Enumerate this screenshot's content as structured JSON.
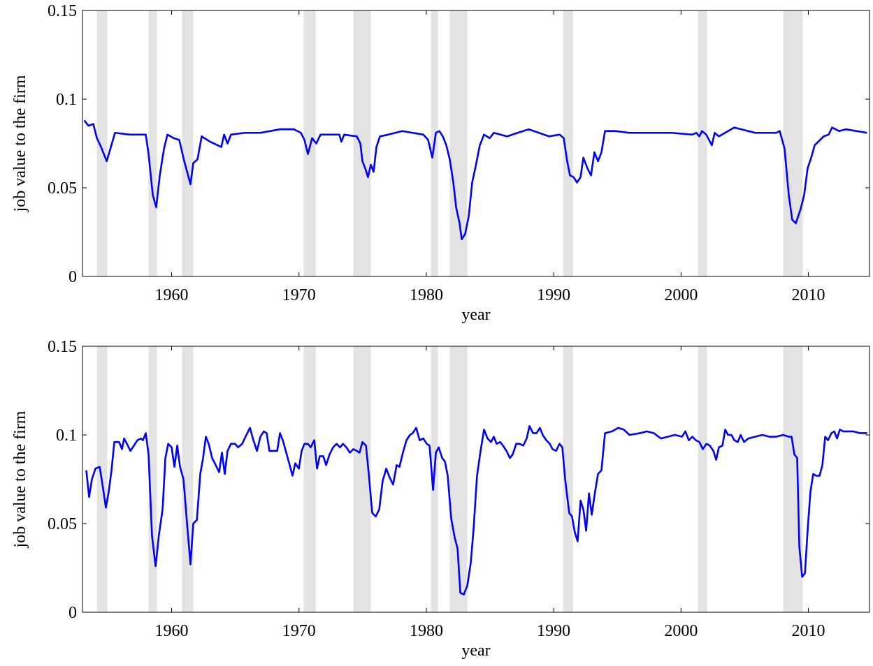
{
  "chart_data": [
    {
      "type": "line",
      "xlabel": "year",
      "ylabel": "job value to the firm",
      "xlim": [
        1953,
        2014.8
      ],
      "ylim": [
        0,
        0.15
      ],
      "xticks": [
        1960,
        1970,
        1980,
        1990,
        2000,
        2010
      ],
      "yticks": [
        0,
        0.05,
        0.1,
        0.15
      ],
      "shaded_spans": [
        [
          1954.13,
          1954.95
        ],
        [
          1958.19,
          1958.85
        ],
        [
          1960.82,
          1961.7
        ],
        [
          1970.37,
          1971.31
        ],
        [
          1974.27,
          1975.64
        ],
        [
          1980.36,
          1980.91
        ],
        [
          1981.84,
          1983.22
        ],
        [
          1990.74,
          1991.51
        ],
        [
          2001.33,
          2002.04
        ],
        [
          2008.02,
          2009.56
        ]
      ],
      "shade_color": "#e3e3e3",
      "x": [
        1953.14,
        1953.47,
        1953.85,
        1954.13,
        1954.46,
        1954.9,
        1955.23,
        1955.55,
        1956.71,
        1957.97,
        1958.19,
        1958.52,
        1958.79,
        1959.07,
        1959.4,
        1959.67,
        1960.16,
        1960.6,
        1960.99,
        1961.48,
        1961.7,
        1962.03,
        1962.36,
        1963.02,
        1963.9,
        1964.12,
        1964.39,
        1964.66,
        1965.76,
        1966.97,
        1968.51,
        1969.6,
        1970.15,
        1970.43,
        1970.7,
        1971.03,
        1971.36,
        1971.69,
        1972.35,
        1973.17,
        1973.33,
        1973.55,
        1974.54,
        1974.82,
        1974.98,
        1975.2,
        1975.42,
        1975.64,
        1975.86,
        1976.08,
        1976.36,
        1977.01,
        1978.11,
        1979.76,
        1980.14,
        1980.47,
        1980.75,
        1981.02,
        1981.29,
        1981.57,
        1981.84,
        1982.12,
        1982.34,
        1982.61,
        1982.78,
        1983.05,
        1983.33,
        1983.6,
        1983.87,
        1984.2,
        1984.53,
        1984.97,
        1985.3,
        1986.34,
        1987.17,
        1988.04,
        1989.64,
        1990.46,
        1990.79,
        1991.06,
        1991.28,
        1991.56,
        1991.83,
        1992.11,
        1992.33,
        1992.65,
        1992.93,
        1993.2,
        1993.48,
        1993.75,
        1994.03,
        1994.85,
        1995.95,
        1997.59,
        1999.24,
        2000.88,
        2001.21,
        2001.43,
        2001.65,
        2001.98,
        2002.42,
        2002.64,
        2002.97,
        2004.18,
        2005.82,
        2007.47,
        2007.75,
        2008.13,
        2008.46,
        2008.73,
        2009.01,
        2009.39,
        2009.67,
        2009.94,
        2010.22,
        2010.49,
        2011.2,
        2011.59,
        2011.86,
        2012.41,
        2012.96,
        2014.6
      ],
      "series": [
        {
          "color": "#0000ff",
          "values": [
            0.088,
            0.085,
            0.086,
            0.078,
            0.073,
            0.065,
            0.073,
            0.081,
            0.08,
            0.08,
            0.069,
            0.046,
            0.039,
            0.057,
            0.072,
            0.08,
            0.078,
            0.077,
            0.065,
            0.052,
            0.064,
            0.066,
            0.079,
            0.076,
            0.073,
            0.08,
            0.075,
            0.08,
            0.081,
            0.081,
            0.083,
            0.083,
            0.081,
            0.077,
            0.069,
            0.078,
            0.075,
            0.08,
            0.08,
            0.08,
            0.076,
            0.08,
            0.079,
            0.075,
            0.065,
            0.061,
            0.056,
            0.063,
            0.059,
            0.073,
            0.079,
            0.08,
            0.082,
            0.08,
            0.077,
            0.067,
            0.081,
            0.082,
            0.079,
            0.074,
            0.066,
            0.053,
            0.039,
            0.03,
            0.021,
            0.024,
            0.034,
            0.053,
            0.062,
            0.074,
            0.08,
            0.078,
            0.081,
            0.079,
            0.081,
            0.083,
            0.079,
            0.08,
            0.078,
            0.065,
            0.057,
            0.056,
            0.053,
            0.056,
            0.067,
            0.061,
            0.057,
            0.07,
            0.065,
            0.07,
            0.082,
            0.082,
            0.081,
            0.081,
            0.081,
            0.08,
            0.081,
            0.079,
            0.082,
            0.08,
            0.074,
            0.081,
            0.079,
            0.084,
            0.081,
            0.081,
            0.082,
            0.072,
            0.046,
            0.032,
            0.03,
            0.038,
            0.046,
            0.061,
            0.067,
            0.074,
            0.079,
            0.08,
            0.084,
            0.082,
            0.083,
            0.081
          ]
        }
      ]
    },
    {
      "type": "line",
      "xlabel": "year",
      "ylabel": "job value to the firm",
      "xlim": [
        1953,
        2014.8
      ],
      "ylim": [
        0,
        0.15
      ],
      "xticks": [
        1960,
        1970,
        1980,
        1990,
        2000,
        2010
      ],
      "yticks": [
        0,
        0.05,
        0.1,
        0.15
      ],
      "shaded_spans": [
        [
          1954.13,
          1954.95
        ],
        [
          1958.19,
          1958.85
        ],
        [
          1960.82,
          1961.7
        ],
        [
          1970.37,
          1971.31
        ],
        [
          1974.27,
          1975.64
        ],
        [
          1980.36,
          1980.91
        ],
        [
          1981.84,
          1983.22
        ],
        [
          1990.74,
          1991.51
        ],
        [
          2001.33,
          2002.04
        ],
        [
          2008.02,
          2009.56
        ]
      ],
      "shade_color": "#e3e3e3",
      "x": [
        1953.3,
        1953.52,
        1953.74,
        1954.02,
        1954.35,
        1954.57,
        1954.84,
        1955.06,
        1955.28,
        1955.5,
        1955.88,
        1956.1,
        1956.27,
        1956.49,
        1956.76,
        1957.04,
        1957.31,
        1957.59,
        1957.75,
        1957.97,
        1958.19,
        1958.46,
        1958.74,
        1959.01,
        1959.29,
        1959.51,
        1959.73,
        1960.0,
        1960.22,
        1960.44,
        1960.66,
        1960.93,
        1961.21,
        1961.48,
        1961.7,
        1961.98,
        1962.25,
        1962.47,
        1962.69,
        1962.91,
        1963.18,
        1963.46,
        1963.73,
        1963.95,
        1964.17,
        1964.39,
        1964.66,
        1964.99,
        1965.21,
        1965.54,
        1965.87,
        1966.15,
        1966.42,
        1966.7,
        1966.97,
        1967.24,
        1967.46,
        1967.68,
        1968.01,
        1968.29,
        1968.51,
        1968.73,
        1969.0,
        1969.27,
        1969.49,
        1969.71,
        1969.99,
        1970.21,
        1970.43,
        1970.7,
        1970.92,
        1971.2,
        1971.42,
        1971.63,
        1971.91,
        1972.13,
        1972.4,
        1972.68,
        1972.95,
        1973.23,
        1973.45,
        1973.72,
        1974.0,
        1974.27,
        1974.54,
        1974.76,
        1974.98,
        1975.26,
        1975.48,
        1975.75,
        1976.03,
        1976.3,
        1976.57,
        1976.85,
        1977.12,
        1977.39,
        1977.67,
        1977.89,
        1978.16,
        1978.44,
        1978.71,
        1978.93,
        1979.2,
        1979.48,
        1979.76,
        1980.03,
        1980.25,
        1980.53,
        1980.75,
        1980.97,
        1981.24,
        1981.46,
        1981.68,
        1981.95,
        1982.23,
        1982.45,
        1982.67,
        1982.94,
        1983.22,
        1983.49,
        1983.71,
        1983.98,
        1984.26,
        1984.53,
        1984.81,
        1985.08,
        1985.3,
        1985.52,
        1985.8,
        1986.02,
        1986.29,
        1986.56,
        1986.78,
        1987.06,
        1987.33,
        1987.61,
        1987.88,
        1988.1,
        1988.38,
        1988.65,
        1988.92,
        1989.14,
        1989.42,
        1989.69,
        1989.91,
        1990.19,
        1990.46,
        1990.68,
        1990.9,
        1991.22,
        1991.44,
        1991.66,
        1991.88,
        1992.11,
        1992.33,
        1992.55,
        1992.77,
        1992.99,
        1993.21,
        1993.48,
        1993.75,
        1994.03,
        1994.58,
        1995.07,
        1995.51,
        1995.95,
        1996.77,
        1997.32,
        1997.87,
        1998.42,
        1998.97,
        1999.52,
        2000.07,
        2000.34,
        2000.61,
        2000.89,
        2001.16,
        2001.44,
        2001.71,
        2001.99,
        2002.26,
        2002.54,
        2002.76,
        2002.97,
        2003.25,
        2003.47,
        2003.69,
        2003.96,
        2004.18,
        2004.46,
        2004.68,
        2004.95,
        2005.28,
        2005.83,
        2006.38,
        2006.93,
        2007.48,
        2008.02,
        2008.46,
        2008.68,
        2008.9,
        2009.12,
        2009.29,
        2009.51,
        2009.73,
        2009.95,
        2010.16,
        2010.38,
        2010.6,
        2010.88,
        2011.1,
        2011.32,
        2011.54,
        2011.81,
        2012.03,
        2012.25,
        2012.47,
        2012.74,
        2013.07,
        2013.51,
        2014.06,
        2014.61
      ],
      "series": [
        {
          "color": "#0000ff",
          "values": [
            0.08,
            0.065,
            0.075,
            0.081,
            0.082,
            0.072,
            0.059,
            0.068,
            0.08,
            0.096,
            0.096,
            0.092,
            0.098,
            0.095,
            0.091,
            0.094,
            0.097,
            0.098,
            0.097,
            0.101,
            0.089,
            0.043,
            0.026,
            0.044,
            0.058,
            0.087,
            0.095,
            0.093,
            0.082,
            0.094,
            0.082,
            0.075,
            0.05,
            0.027,
            0.05,
            0.052,
            0.078,
            0.087,
            0.099,
            0.095,
            0.087,
            0.083,
            0.079,
            0.09,
            0.078,
            0.091,
            0.095,
            0.095,
            0.093,
            0.095,
            0.1,
            0.104,
            0.097,
            0.091,
            0.099,
            0.102,
            0.101,
            0.091,
            0.091,
            0.091,
            0.101,
            0.097,
            0.09,
            0.083,
            0.077,
            0.084,
            0.081,
            0.091,
            0.095,
            0.095,
            0.093,
            0.097,
            0.081,
            0.088,
            0.088,
            0.083,
            0.089,
            0.093,
            0.095,
            0.093,
            0.095,
            0.093,
            0.09,
            0.092,
            0.091,
            0.09,
            0.096,
            0.094,
            0.078,
            0.056,
            0.054,
            0.058,
            0.074,
            0.081,
            0.076,
            0.072,
            0.083,
            0.082,
            0.09,
            0.097,
            0.1,
            0.101,
            0.104,
            0.097,
            0.098,
            0.095,
            0.094,
            0.069,
            0.09,
            0.093,
            0.087,
            0.085,
            0.077,
            0.053,
            0.042,
            0.036,
            0.011,
            0.01,
            0.015,
            0.028,
            0.047,
            0.077,
            0.091,
            0.103,
            0.098,
            0.096,
            0.099,
            0.095,
            0.096,
            0.094,
            0.091,
            0.087,
            0.089,
            0.095,
            0.095,
            0.094,
            0.098,
            0.105,
            0.101,
            0.101,
            0.104,
            0.1,
            0.097,
            0.095,
            0.092,
            0.091,
            0.095,
            0.093,
            0.075,
            0.056,
            0.054,
            0.045,
            0.04,
            0.063,
            0.058,
            0.046,
            0.067,
            0.055,
            0.066,
            0.078,
            0.08,
            0.101,
            0.102,
            0.104,
            0.103,
            0.1,
            0.101,
            0.102,
            0.101,
            0.098,
            0.099,
            0.1,
            0.099,
            0.102,
            0.097,
            0.099,
            0.097,
            0.096,
            0.092,
            0.095,
            0.094,
            0.091,
            0.086,
            0.093,
            0.094,
            0.103,
            0.1,
            0.1,
            0.097,
            0.096,
            0.1,
            0.096,
            0.098,
            0.099,
            0.1,
            0.099,
            0.099,
            0.1,
            0.099,
            0.099,
            0.089,
            0.087,
            0.037,
            0.02,
            0.022,
            0.047,
            0.068,
            0.078,
            0.077,
            0.077,
            0.083,
            0.099,
            0.097,
            0.101,
            0.102,
            0.098,
            0.103,
            0.102,
            0.102,
            0.102,
            0.101,
            0.101
          ]
        }
      ]
    }
  ]
}
